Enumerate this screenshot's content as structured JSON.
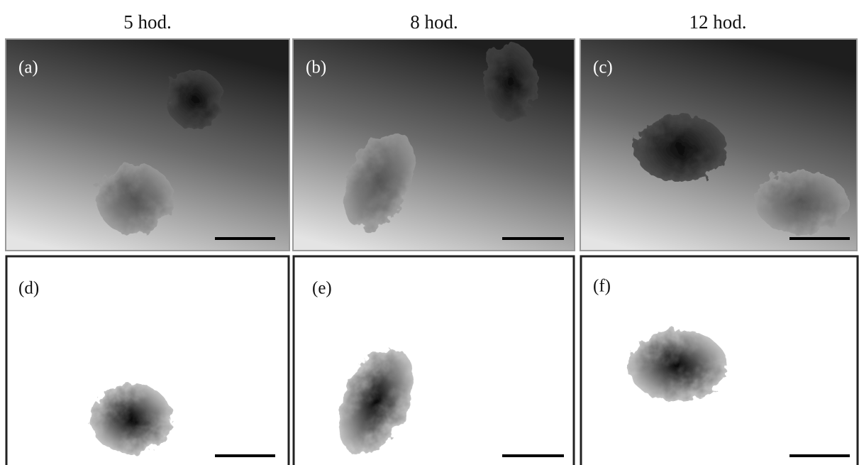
{
  "columns": [
    "5 hod.",
    "8 hod.",
    "12 hod."
  ],
  "panels": [
    "(a)",
    "(b)",
    "(c)",
    "(d)",
    "(e)",
    "(f)"
  ]
}
